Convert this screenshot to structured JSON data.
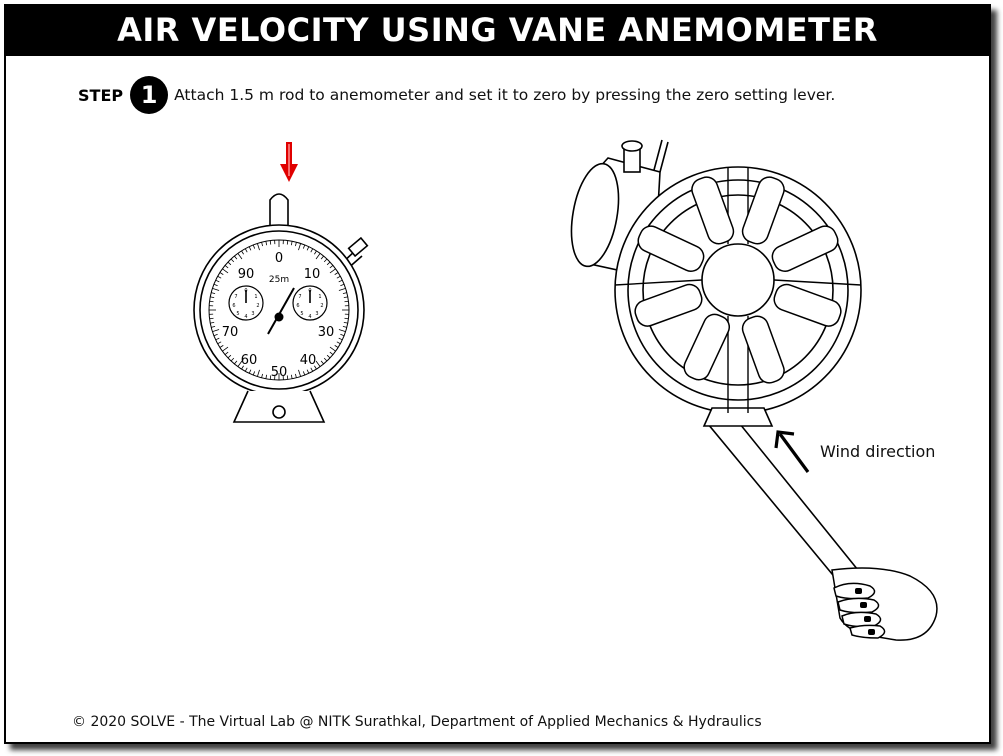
{
  "header": {
    "title": "AIR VELOCITY USING VANE ANEMOMETER"
  },
  "step": {
    "label": "STEP",
    "number": "1",
    "instruction": "Attach 1.5 m rod to anemometer and set it to zero by pressing the zero setting lever."
  },
  "meter": {
    "scale_labels": [
      "0",
      "10",
      "30",
      "40",
      "50",
      "60",
      "70",
      "90"
    ],
    "unit_label": "25m"
  },
  "wind": {
    "label": "Wind direction"
  },
  "footer": {
    "text": "© 2020 SOLVE - The Virtual Lab @ NITK Surathkal, Department of Applied Mechanics & Hydraulics"
  },
  "colors": {
    "accent_arrow": "#e00000",
    "title_bar": "#000000"
  }
}
